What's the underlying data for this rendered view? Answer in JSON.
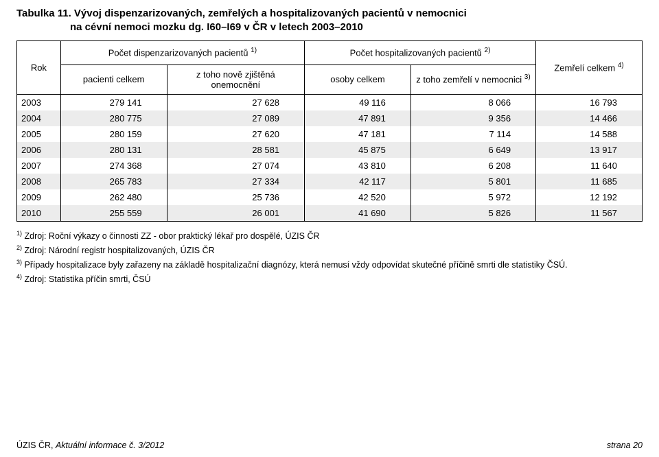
{
  "title": {
    "line1": "Tabulka 11. Vývoj dispenzarizovaných, zemřelých a hospitalizovaných pacientů v nemocnici",
    "line2": "na cévní nemoci mozku dg. I60–I69 v ČR v letech 2003–2010"
  },
  "columns": {
    "rok": "Rok",
    "disp_group": "Počet dispenzarizovaných pacientů ",
    "disp_sup": "1)",
    "disp_sub1": "pacienti celkem",
    "disp_sub2": "z toho nově zjištěná onemocnění",
    "hosp_group": "Počet hospitalizovaných pacientů ",
    "hosp_sup": "2)",
    "hosp_sub1": "osoby celkem",
    "hosp_sub2": "z toho zemřelí v nemocnici ",
    "hosp_sub2_sup": "3)",
    "zem": "Zemřelí celkem ",
    "zem_sup": "4)"
  },
  "rows": [
    {
      "yr": "2003",
      "c1": "279 141",
      "c2": "27 628",
      "c3": "49 116",
      "c4": "8 066",
      "c5": "16 793",
      "stripe": false
    },
    {
      "yr": "2004",
      "c1": "280 775",
      "c2": "27 089",
      "c3": "47 891",
      "c4": "9 356",
      "c5": "14 466",
      "stripe": true
    },
    {
      "yr": "2005",
      "c1": "280 159",
      "c2": "27 620",
      "c3": "47 181",
      "c4": "7 114",
      "c5": "14 588",
      "stripe": false
    },
    {
      "yr": "2006",
      "c1": "280 131",
      "c2": "28 581",
      "c3": "45 875",
      "c4": "6 649",
      "c5": "13 917",
      "stripe": true
    },
    {
      "yr": "2007",
      "c1": "274 368",
      "c2": "27 074",
      "c3": "43 810",
      "c4": "6 208",
      "c5": "11 640",
      "stripe": false
    },
    {
      "yr": "2008",
      "c1": "265 783",
      "c2": "27 334",
      "c3": "42 117",
      "c4": "5 801",
      "c5": "11 685",
      "stripe": true
    },
    {
      "yr": "2009",
      "c1": "262 480",
      "c2": "25 736",
      "c3": "42 520",
      "c4": "5 972",
      "c5": "12 192",
      "stripe": false
    },
    {
      "yr": "2010",
      "c1": "255 559",
      "c2": "26 001",
      "c3": "41 690",
      "c4": "5 826",
      "c5": "11 567",
      "stripe": true
    }
  ],
  "footnotes": {
    "f1_sup": "1)",
    "f1": " Zdroj: Roční výkazy o činnosti ZZ - obor praktický lékař pro dospělé, ÚZIS ČR",
    "f2_sup": "2)",
    "f2": " Zdroj: Národní registr hospitalizovaných, ÚZIS ČR",
    "f3_sup": "3)",
    "f3": " Případy hospitalizace byly zařazeny na základě hospitalizační diagnózy, která nemusí vždy odpovídat skutečné příčině smrti dle statistiky ČSÚ.",
    "f4_sup": "4)",
    "f4": " Zdroj: Statistika příčin smrti, ČSÚ"
  },
  "footer": {
    "left_prefix": "ÚZIS ČR, ",
    "left_italic": "Aktuální informace č. 3/2012",
    "right": "strana 20"
  },
  "style": {
    "stripe_color": "#ececec",
    "border_color": "#000000",
    "font_size_title": 15,
    "font_size_table": 13,
    "font_size_footnote": 12.5
  }
}
